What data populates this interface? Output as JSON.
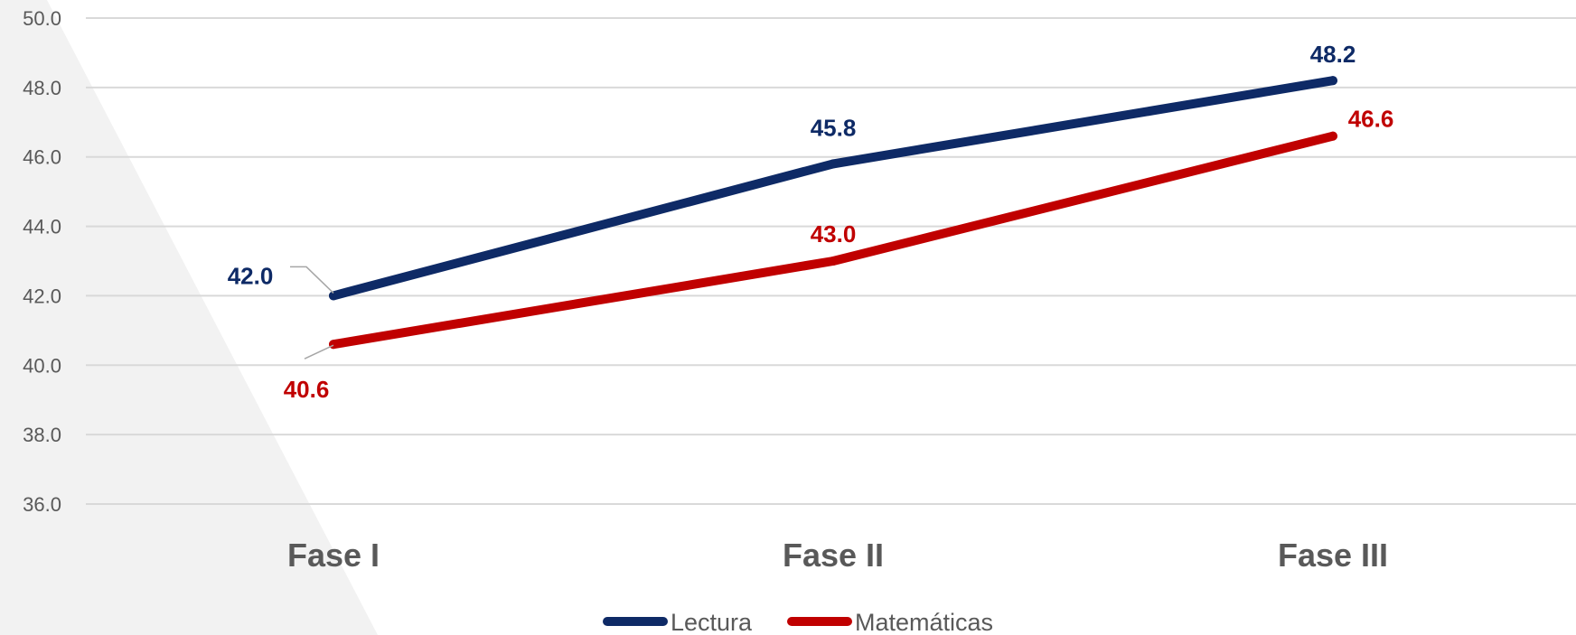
{
  "chart_data": {
    "type": "line",
    "categories": [
      "Fase I",
      "Fase II",
      "Fase III"
    ],
    "series": [
      {
        "name": "Lectura",
        "values": [
          42.0,
          45.8,
          48.2
        ],
        "labels": [
          "42.0",
          "45.8",
          "48.2"
        ],
        "color": "#0e2a66"
      },
      {
        "name": "Matemáticas",
        "values": [
          40.6,
          43.0,
          46.6
        ],
        "labels": [
          "40.6",
          "43.0",
          "46.6"
        ],
        "color": "#c00000"
      }
    ],
    "y_ticks": [
      "36.0",
      "38.0",
      "40.0",
      "42.0",
      "44.0",
      "46.0",
      "48.0",
      "50.0"
    ],
    "ylim": [
      36,
      50
    ],
    "grid": true,
    "legend_position": "bottom",
    "colors": {
      "grid": "#d9d9d9",
      "tick_text": "#595959",
      "background_shape": "#f2f2f2"
    }
  }
}
